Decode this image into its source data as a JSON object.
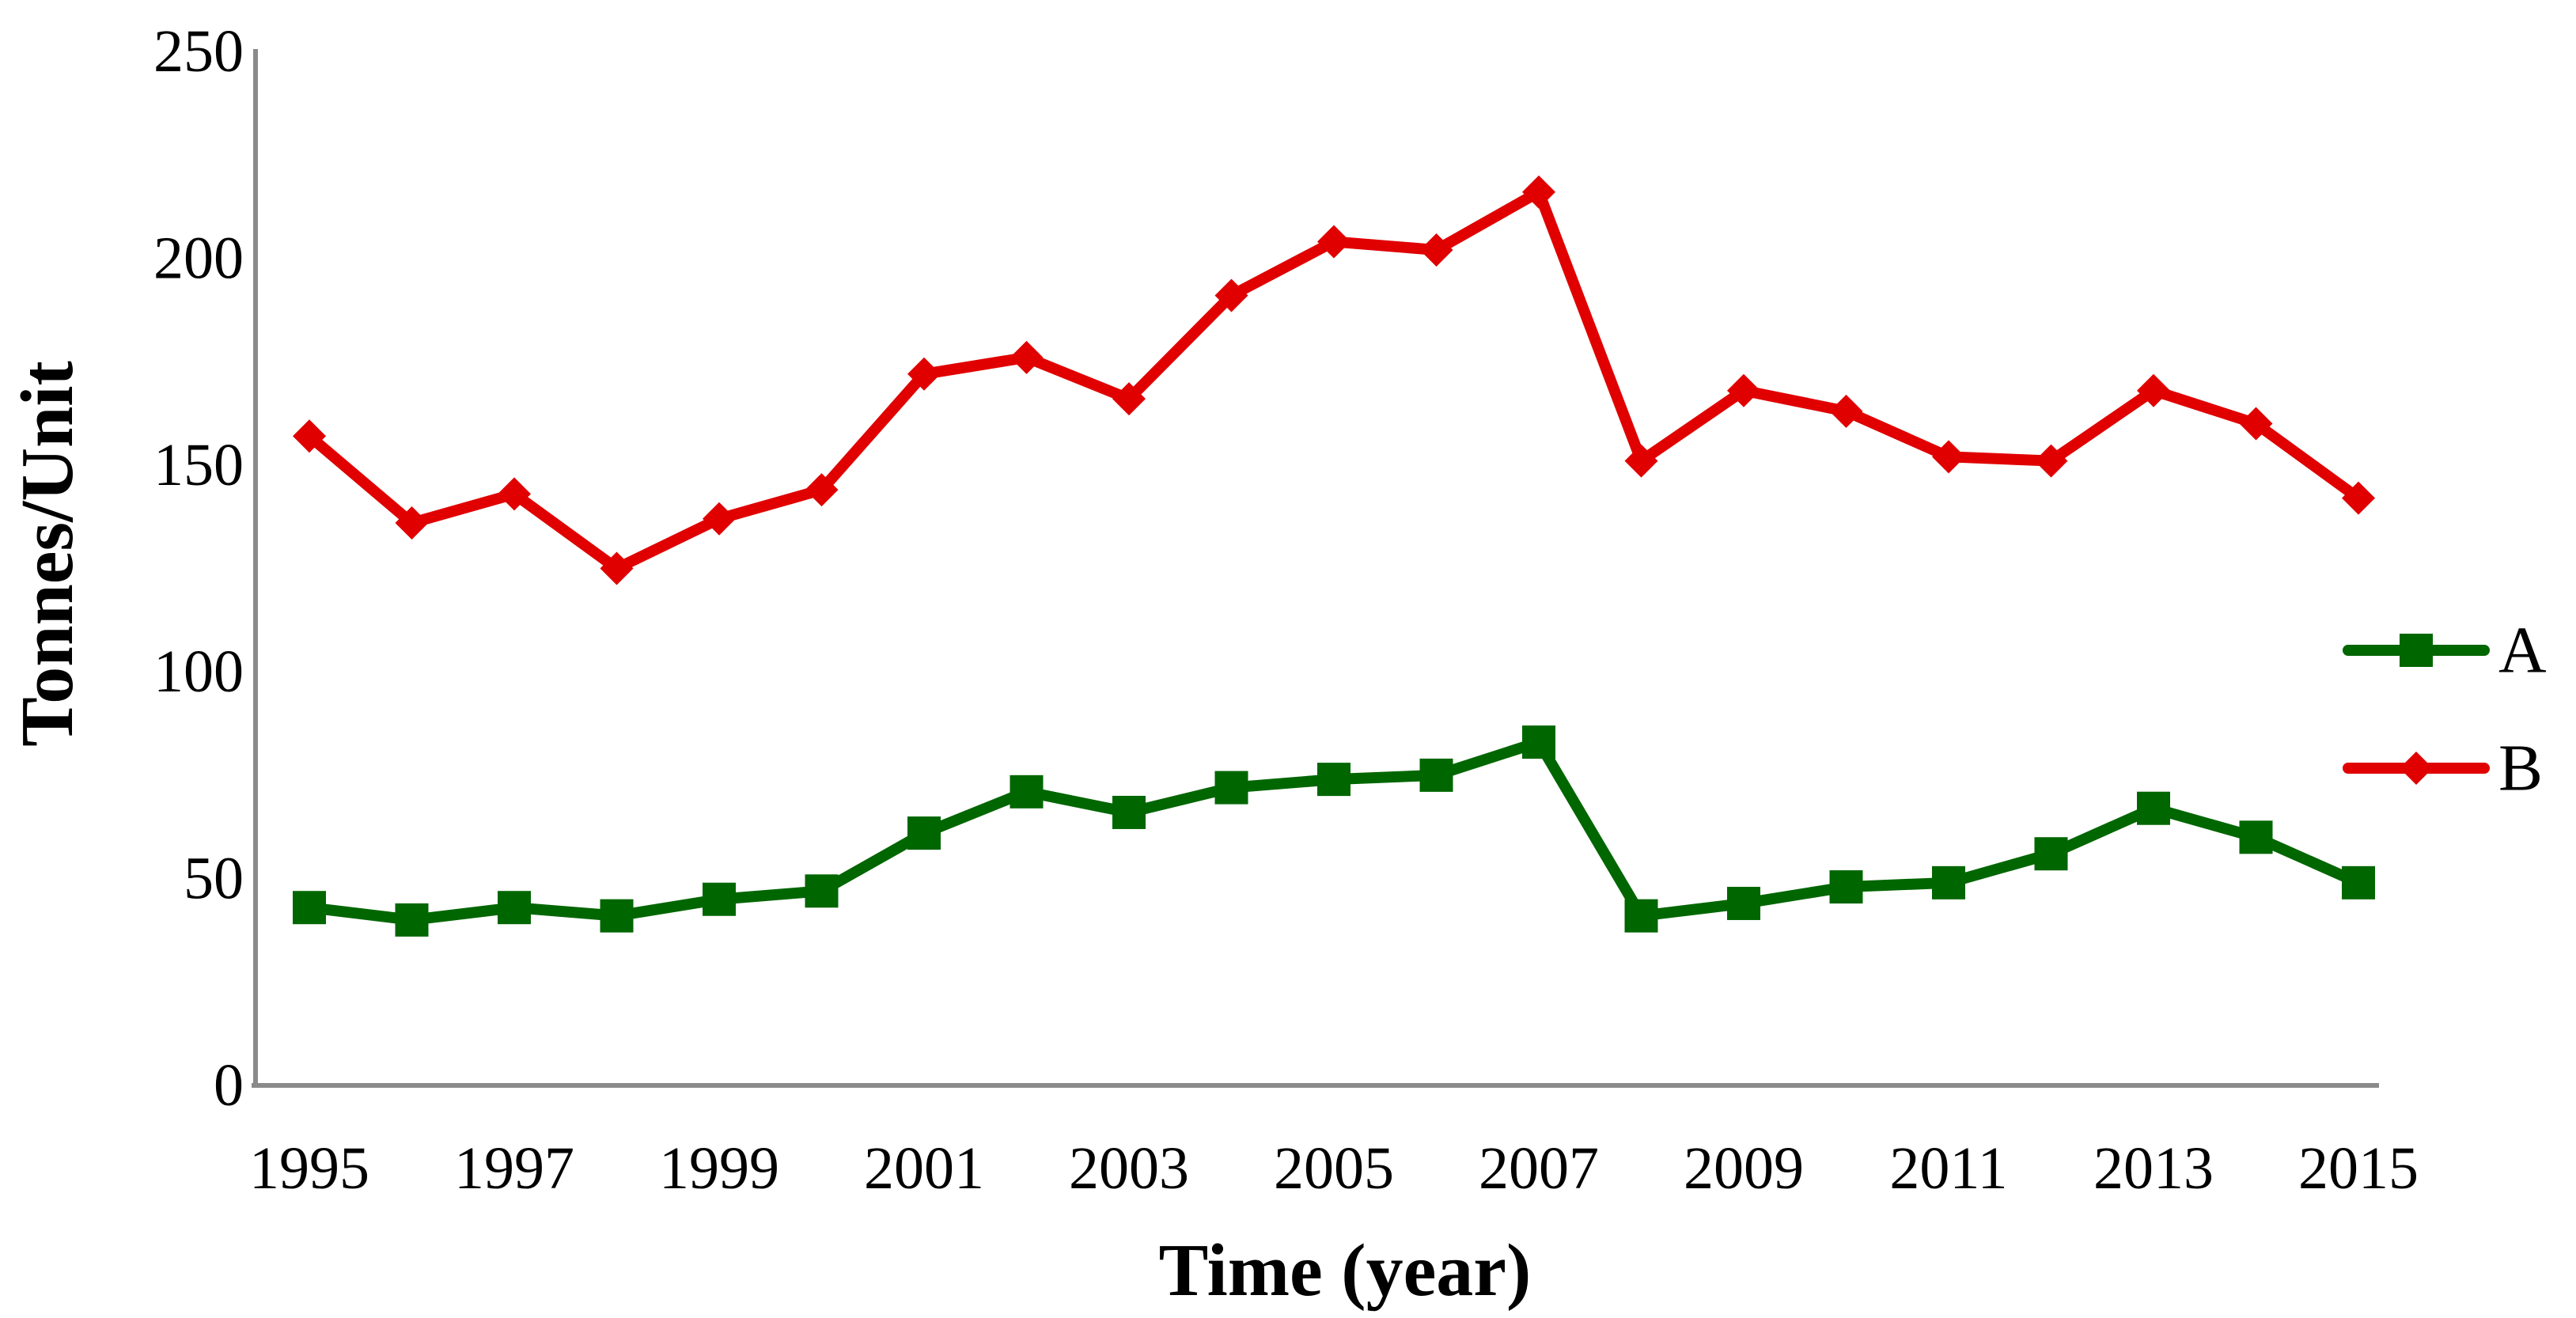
{
  "chart_data": {
    "type": "line",
    "title": "",
    "xlabel": "Time (year)",
    "ylabel": "Tonnes/Unit",
    "x": [
      1995,
      1996,
      1997,
      1998,
      1999,
      2000,
      2001,
      2002,
      2003,
      2004,
      2005,
      2006,
      2007,
      2008,
      2009,
      2010,
      2011,
      2012,
      2013,
      2014,
      2015
    ],
    "x_tick_labels": [
      "1995",
      "1997",
      "1999",
      "2001",
      "2003",
      "2005",
      "2007",
      "2009",
      "2011",
      "2013",
      "2015"
    ],
    "yticks": [
      0,
      50,
      100,
      150,
      200,
      250
    ],
    "ylim": [
      0,
      250
    ],
    "grid": false,
    "legend_position": "right",
    "background_color": "#FFFFFF",
    "axis_color": "#8A8A8A",
    "text_color": "#000000",
    "series": [
      {
        "name": "A",
        "color": "#006600",
        "marker": "square",
        "values": [
          43,
          40,
          43,
          41,
          45,
          47,
          61,
          71,
          66,
          72,
          74,
          75,
          83,
          41,
          44,
          48,
          49,
          56,
          67,
          60,
          49
        ]
      },
      {
        "name": "B",
        "color": "#E00000",
        "marker": "diamond",
        "values": [
          157,
          136,
          143,
          125,
          137,
          144,
          172,
          176,
          166,
          191,
          204,
          202,
          216,
          151,
          168,
          163,
          152,
          151,
          168,
          160,
          142
        ]
      }
    ]
  },
  "legend": {
    "items": [
      {
        "label": "A",
        "color": "#006600",
        "marker": "square"
      },
      {
        "label": "B",
        "color": "#E00000",
        "marker": "diamond"
      }
    ]
  }
}
